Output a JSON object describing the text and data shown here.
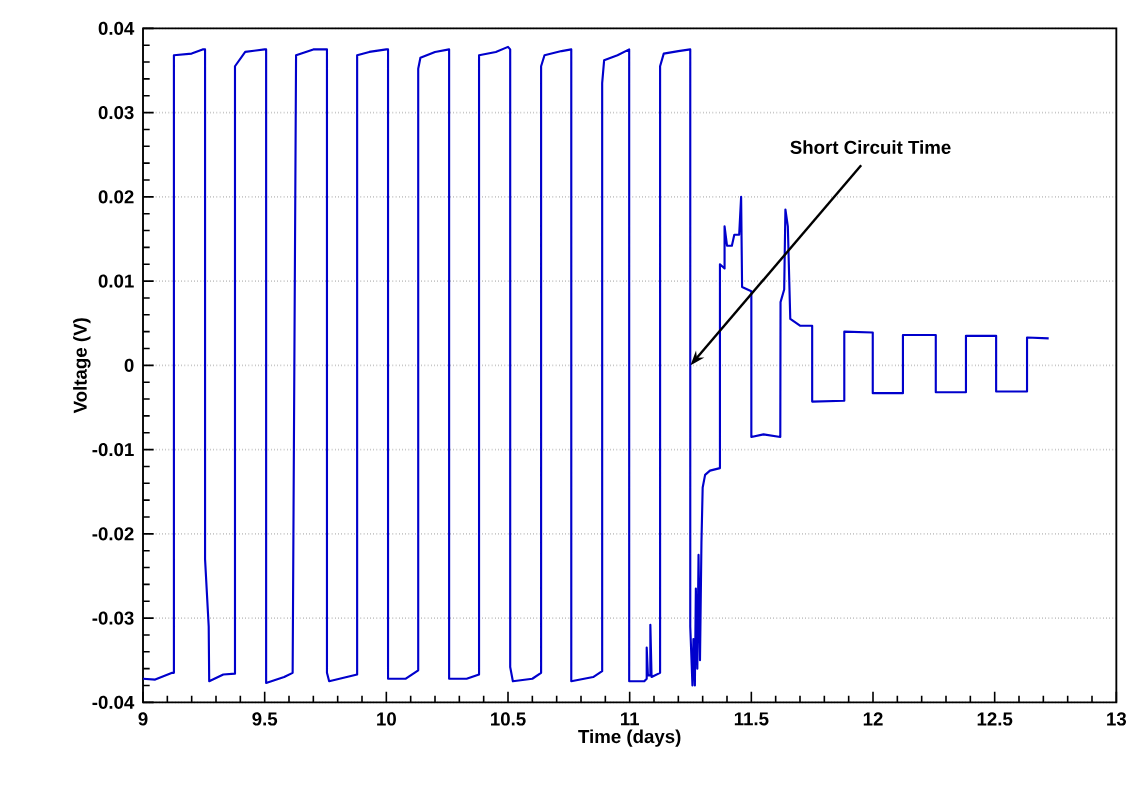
{
  "chart_data": {
    "type": "line",
    "xlabel": "Time (days)",
    "ylabel": "Voltage (V)",
    "xlim": [
      9,
      13
    ],
    "xticks": [
      9,
      9.5,
      10,
      10.5,
      11,
      11.5,
      12,
      12.5,
      13
    ],
    "ylim": [
      -0.04,
      0.04
    ],
    "yticks": [
      -0.04,
      -0.03,
      -0.02,
      -0.01,
      0,
      0.01,
      0.02,
      0.03,
      0.04
    ],
    "grid": "y",
    "marker": "none",
    "line_style": "solid",
    "annotations": [
      {
        "text": "Short Circuit Time",
        "x": 11.25,
        "y": 0
      }
    ],
    "series": [
      {
        "color": "#0000cc",
        "x": [
          9.0,
          9.05,
          9.12,
          9.127,
          9.127,
          9.2,
          9.245,
          9.255,
          9.255,
          9.27,
          9.272,
          9.33,
          9.378,
          9.378,
          9.42,
          9.5,
          9.506,
          9.506,
          9.58,
          9.615,
          9.629,
          9.7,
          9.756,
          9.756,
          9.765,
          9.88,
          9.88,
          9.93,
          10.0,
          10.007,
          10.007,
          10.08,
          10.131,
          10.131,
          10.14,
          10.2,
          10.258,
          10.258,
          10.33,
          10.381,
          10.381,
          10.45,
          10.5,
          10.509,
          10.509,
          10.52,
          10.6,
          10.636,
          10.636,
          10.65,
          10.72,
          10.76,
          10.76,
          10.85,
          10.887,
          10.887,
          10.895,
          10.95,
          10.998,
          10.998,
          11.06,
          11.07,
          11.07,
          11.075,
          11.085,
          11.085,
          11.09,
          11.125,
          11.125,
          11.14,
          11.2,
          11.249,
          11.249,
          11.258,
          11.262,
          11.268,
          11.272,
          11.278,
          11.283,
          11.289,
          11.295,
          11.3,
          11.31,
          11.33,
          11.371,
          11.371,
          11.39,
          11.39,
          11.4,
          11.42,
          11.43,
          11.45,
          11.458,
          11.462,
          11.5,
          11.5,
          11.55,
          11.619,
          11.62,
          11.635,
          11.64,
          11.65,
          11.66,
          11.7,
          11.75,
          11.75,
          11.882,
          11.882,
          11.999,
          11.999,
          12.123,
          12.123,
          12.258,
          12.258,
          12.382,
          12.382,
          12.506,
          12.506,
          12.633,
          12.633,
          12.722
        ],
        "values": [
          -0.0372,
          -0.0373,
          -0.0365,
          -0.0365,
          0.0368,
          0.037,
          0.0375,
          0.0375,
          -0.023,
          -0.031,
          -0.0375,
          -0.0367,
          -0.0366,
          0.0355,
          0.0372,
          0.0375,
          0.0375,
          -0.0377,
          -0.037,
          -0.0365,
          0.0368,
          0.0375,
          0.0375,
          -0.0365,
          -0.0375,
          -0.0367,
          0.0368,
          0.0372,
          0.0375,
          0.0375,
          -0.0372,
          -0.0372,
          -0.0362,
          0.0352,
          0.0365,
          0.0372,
          0.0375,
          -0.0372,
          -0.0372,
          -0.0367,
          0.0368,
          0.0372,
          0.0378,
          0.0375,
          -0.0358,
          -0.0375,
          -0.0372,
          -0.0365,
          0.0355,
          0.0368,
          0.0373,
          0.0375,
          -0.0375,
          -0.037,
          -0.0363,
          0.0335,
          0.0362,
          0.0368,
          0.0375,
          -0.0375,
          -0.0375,
          -0.0372,
          -0.0335,
          -0.0368,
          -0.0368,
          -0.0308,
          -0.037,
          -0.0365,
          0.0355,
          0.037,
          0.0373,
          0.0375,
          -0.031,
          -0.038,
          -0.0325,
          -0.038,
          -0.0265,
          -0.036,
          -0.0225,
          -0.035,
          -0.021,
          -0.0145,
          -0.013,
          -0.0125,
          -0.0122,
          0.012,
          0.0115,
          0.0165,
          0.0142,
          0.0142,
          0.0155,
          0.0155,
          0.02,
          0.0093,
          0.0088,
          -0.0085,
          -0.0082,
          -0.0085,
          0.0075,
          0.009,
          0.0185,
          0.0165,
          0.0055,
          0.0047,
          0.0047,
          -0.0043,
          -0.0042,
          0.004,
          0.0039,
          -0.0033,
          -0.0033,
          0.0036,
          0.0036,
          -0.0032,
          -0.0032,
          0.0035,
          0.0035,
          -0.0031,
          -0.0031,
          0.0033,
          0.0032
        ]
      }
    ]
  }
}
